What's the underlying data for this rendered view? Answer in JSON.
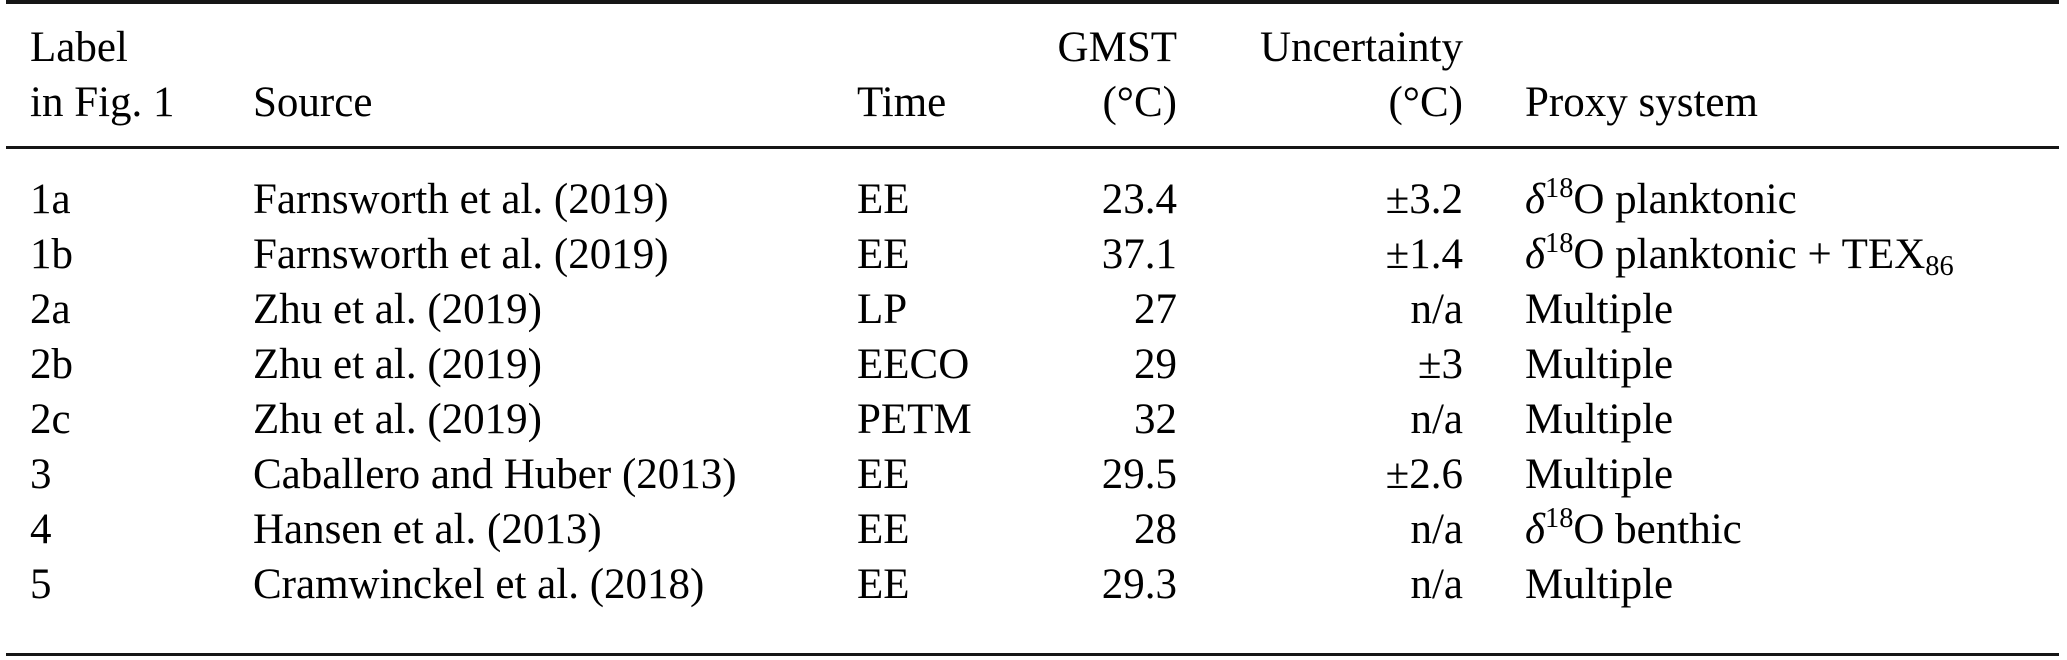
{
  "table": {
    "title_semantic": "GMST proxy estimate comparison table",
    "header": {
      "columns": [
        {
          "line1": "Label",
          "line2": "in Fig. 1",
          "align": "left"
        },
        {
          "line1": "",
          "line2": "Source",
          "align": "left"
        },
        {
          "line1": "",
          "line2": "Time",
          "align": "left"
        },
        {
          "line1": "GMST",
          "line2": "(°C)",
          "align": "right"
        },
        {
          "line1": "Uncertainty",
          "line2": "(°C)",
          "align": "right"
        },
        {
          "line1": "",
          "line2": "Proxy system",
          "align": "left"
        }
      ]
    },
    "rows": [
      {
        "label": "1a",
        "source": "Farnsworth et al. (2019)",
        "time": "EE",
        "gmst": "23.4",
        "uncertainty": "±3.2",
        "proxy": "δ^{18}O planktonic"
      },
      {
        "label": "1b",
        "source": "Farnsworth et al. (2019)",
        "time": "EE",
        "gmst": "37.1",
        "uncertainty": "±1.4",
        "proxy": "δ^{18}O planktonic + TEX_{86}"
      },
      {
        "label": "2a",
        "source": "Zhu et al. (2019)",
        "time": "LP",
        "gmst": "27",
        "uncertainty": "n/a",
        "proxy": "Multiple"
      },
      {
        "label": "2b",
        "source": "Zhu et al. (2019)",
        "time": "EECO",
        "gmst": "29",
        "uncertainty": "±3",
        "proxy": "Multiple"
      },
      {
        "label": "2c",
        "source": "Zhu et al. (2019)",
        "time": "PETM",
        "gmst": "32",
        "uncertainty": "n/a",
        "proxy": "Multiple"
      },
      {
        "label": "3",
        "source": "Caballero and Huber (2013)",
        "time": "EE",
        "gmst": "29.5",
        "uncertainty": "±2.6",
        "proxy": "Multiple"
      },
      {
        "label": "4",
        "source": "Hansen et al. (2013)",
        "time": "EE",
        "gmst": "28",
        "uncertainty": "n/a",
        "proxy": "δ^{18}O benthic"
      },
      {
        "label": "5",
        "source": "Cramwinckel et al. (2018)",
        "time": "EE",
        "gmst": "29.3",
        "uncertainty": "n/a",
        "proxy": "Multiple"
      }
    ],
    "colors": {
      "background": "#ffffff",
      "text": "#000000",
      "rule": "#161616"
    }
  }
}
